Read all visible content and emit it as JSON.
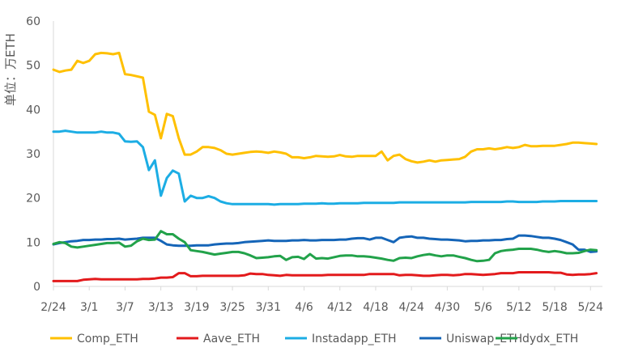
{
  "chart_data": {
    "type": "line",
    "title": "",
    "xlabel": "",
    "ylabel": "单位：万ETH",
    "ylim": [
      0,
      60
    ],
    "yticks": [
      0,
      10,
      20,
      30,
      40,
      50,
      60
    ],
    "xlim": [
      "2/24",
      "5/26"
    ],
    "xticks": [
      "2/24",
      "3/1",
      "3/7",
      "3/13",
      "3/19",
      "3/25",
      "3/31",
      "4/6",
      "4/12",
      "4/18",
      "4/24",
      "4/30",
      "5/6",
      "5/12",
      "5/18",
      "5/24"
    ],
    "grid": false,
    "legend_position": "bottom",
    "series": [
      {
        "name": "Comp_ETH",
        "color": "#FFC000",
        "x": [
          "2/24",
          "2/25",
          "2/26",
          "2/27",
          "2/28",
          "2/29",
          "3/1",
          "3/2",
          "3/3",
          "3/4",
          "3/5",
          "3/6",
          "3/7",
          "3/8",
          "3/9",
          "3/10",
          "3/11",
          "3/12",
          "3/13",
          "3/14",
          "3/15",
          "3/16",
          "3/17",
          "3/18",
          "3/19",
          "3/20",
          "3/21",
          "3/22",
          "3/23",
          "3/24",
          "3/25",
          "3/26",
          "3/27",
          "3/28",
          "3/29",
          "3/30",
          "3/31",
          "4/1",
          "4/2",
          "4/3",
          "4/4",
          "4/5",
          "4/6",
          "4/7",
          "4/8",
          "4/9",
          "4/10",
          "4/11",
          "4/12",
          "4/13",
          "4/14",
          "4/15",
          "4/16",
          "4/17",
          "4/18",
          "4/19",
          "4/20",
          "4/21",
          "4/22",
          "4/23",
          "4/24",
          "4/25",
          "4/26",
          "4/27",
          "4/28",
          "4/29",
          "4/30",
          "5/1",
          "5/2",
          "5/3",
          "5/4",
          "5/5",
          "5/6",
          "5/7",
          "5/8",
          "5/9",
          "5/10",
          "5/11",
          "5/12",
          "5/13",
          "5/14",
          "5/15",
          "5/16",
          "5/17",
          "5/18",
          "5/19",
          "5/20",
          "5/21",
          "5/22",
          "5/23",
          "5/24",
          "5/25"
        ],
        "values": [
          49,
          48.5,
          48.8,
          49,
          51,
          50.5,
          51,
          52.5,
          52.8,
          52.7,
          52.5,
          52.8,
          48,
          47.8,
          47.5,
          47.2,
          39.5,
          38.8,
          33.5,
          39,
          38.5,
          33.5,
          29.8,
          29.8,
          30.5,
          31.5,
          31.5,
          31.3,
          30.8,
          30,
          29.8,
          30,
          30.2,
          30.4,
          30.5,
          30.4,
          30.2,
          30.5,
          30.3,
          30,
          29.2,
          29.2,
          29,
          29.2,
          29.5,
          29.4,
          29.3,
          29.4,
          29.7,
          29.4,
          29.3,
          29.5,
          29.5,
          29.5,
          29.5,
          30.5,
          28.5,
          29.5,
          29.8,
          28.8,
          28.3,
          28,
          28.2,
          28.5,
          28.2,
          28.5,
          28.6,
          28.7,
          28.8,
          29.3,
          30.5,
          31,
          31,
          31.2,
          31,
          31.2,
          31.5,
          31.3,
          31.5,
          32,
          31.7,
          31.7,
          31.8,
          31.8,
          31.8,
          32,
          32.2,
          32.5,
          32.5,
          32.4,
          32.3,
          32.2
        ]
      },
      {
        "name": "Aave_ETH",
        "color": "#E31A1C",
        "x": [
          "2/24",
          "2/25",
          "2/26",
          "2/27",
          "2/28",
          "2/29",
          "3/1",
          "3/2",
          "3/3",
          "3/4",
          "3/5",
          "3/6",
          "3/7",
          "3/8",
          "3/9",
          "3/10",
          "3/11",
          "3/12",
          "3/13",
          "3/14",
          "3/15",
          "3/16",
          "3/17",
          "3/18",
          "3/19",
          "3/20",
          "3/21",
          "3/22",
          "3/23",
          "3/24",
          "3/25",
          "3/26",
          "3/27",
          "3/28",
          "3/29",
          "3/30",
          "3/31",
          "4/1",
          "4/2",
          "4/3",
          "4/4",
          "4/5",
          "4/6",
          "4/7",
          "4/8",
          "4/9",
          "4/10",
          "4/11",
          "4/12",
          "4/13",
          "4/14",
          "4/15",
          "4/16",
          "4/17",
          "4/18",
          "4/19",
          "4/20",
          "4/21",
          "4/22",
          "4/23",
          "4/24",
          "4/25",
          "4/26",
          "4/27",
          "4/28",
          "4/29",
          "4/30",
          "5/1",
          "5/2",
          "5/3",
          "5/4",
          "5/5",
          "5/6",
          "5/7",
          "5/8",
          "5/9",
          "5/10",
          "5/11",
          "5/12",
          "5/13",
          "5/14",
          "5/15",
          "5/16",
          "5/17",
          "5/18",
          "5/19",
          "5/20",
          "5/21",
          "5/22",
          "5/23",
          "5/24",
          "5/25"
        ],
        "values": [
          1.2,
          1.2,
          1.2,
          1.2,
          1.2,
          1.5,
          1.6,
          1.7,
          1.6,
          1.6,
          1.6,
          1.6,
          1.6,
          1.6,
          1.6,
          1.7,
          1.7,
          1.8,
          2,
          2,
          2.1,
          3,
          3,
          2.3,
          2.3,
          2.4,
          2.4,
          2.4,
          2.4,
          2.4,
          2.4,
          2.4,
          2.5,
          2.9,
          2.8,
          2.8,
          2.6,
          2.5,
          2.4,
          2.6,
          2.5,
          2.5,
          2.5,
          2.5,
          2.5,
          2.5,
          2.6,
          2.6,
          2.6,
          2.6,
          2.6,
          2.6,
          2.6,
          2.8,
          2.8,
          2.8,
          2.8,
          2.8,
          2.5,
          2.6,
          2.6,
          2.5,
          2.4,
          2.4,
          2.5,
          2.6,
          2.6,
          2.5,
          2.6,
          2.8,
          2.8,
          2.7,
          2.6,
          2.7,
          2.8,
          3,
          3,
          3,
          3.2,
          3.2,
          3.2,
          3.2,
          3.2,
          3.2,
          3.1,
          3.1,
          2.7,
          2.6,
          2.7,
          2.7,
          2.8,
          3
        ]
      },
      {
        "name": "Instadapp_ETH",
        "color": "#1CADE4",
        "x": [
          "2/24",
          "2/25",
          "2/26",
          "2/27",
          "2/28",
          "2/29",
          "3/1",
          "3/2",
          "3/3",
          "3/4",
          "3/5",
          "3/6",
          "3/7",
          "3/8",
          "3/9",
          "3/10",
          "3/11",
          "3/12",
          "3/13",
          "3/14",
          "3/15",
          "3/16",
          "3/17",
          "3/18",
          "3/19",
          "3/20",
          "3/21",
          "3/22",
          "3/23",
          "3/24",
          "3/25",
          "3/26",
          "3/27",
          "3/28",
          "3/29",
          "3/30",
          "3/31",
          "4/1",
          "4/2",
          "4/3",
          "4/4",
          "4/5",
          "4/6",
          "4/7",
          "4/8",
          "4/9",
          "4/10",
          "4/11",
          "4/12",
          "4/13",
          "4/14",
          "4/15",
          "4/16",
          "4/17",
          "4/18",
          "4/19",
          "4/20",
          "4/21",
          "4/22",
          "4/23",
          "4/24",
          "4/25",
          "4/26",
          "4/27",
          "4/28",
          "4/29",
          "4/30",
          "5/1",
          "5/2",
          "5/3",
          "5/4",
          "5/5",
          "5/6",
          "5/7",
          "5/8",
          "5/9",
          "5/10",
          "5/11",
          "5/12",
          "5/13",
          "5/14",
          "5/15",
          "5/16",
          "5/17",
          "5/18",
          "5/19",
          "5/20",
          "5/21",
          "5/22",
          "5/23",
          "5/24",
          "5/25"
        ],
        "values": [
          35,
          35,
          35.2,
          35,
          34.8,
          34.8,
          34.8,
          34.8,
          35,
          34.8,
          34.8,
          34.5,
          32.8,
          32.7,
          32.8,
          31.5,
          26.3,
          28.5,
          20.5,
          24.5,
          26.2,
          25.5,
          19.2,
          20.5,
          20,
          20,
          20.4,
          20,
          19.2,
          18.8,
          18.6,
          18.6,
          18.6,
          18.6,
          18.6,
          18.6,
          18.6,
          18.5,
          18.6,
          18.6,
          18.6,
          18.6,
          18.7,
          18.7,
          18.7,
          18.8,
          18.7,
          18.7,
          18.8,
          18.8,
          18.8,
          18.8,
          18.9,
          18.9,
          18.9,
          18.9,
          18.9,
          18.9,
          19,
          19,
          19,
          19,
          19,
          19,
          19,
          19,
          19,
          19,
          19,
          19,
          19.1,
          19.1,
          19.1,
          19.1,
          19.1,
          19.1,
          19.2,
          19.2,
          19.1,
          19.1,
          19.1,
          19.1,
          19.2,
          19.2,
          19.2,
          19.3,
          19.3,
          19.3,
          19.3,
          19.3,
          19.3,
          19.3
        ]
      },
      {
        "name": "Uniswap_ETH",
        "color": "#1565B8",
        "x": [
          "2/24",
          "2/25",
          "2/26",
          "2/27",
          "2/28",
          "2/29",
          "3/1",
          "3/2",
          "3/3",
          "3/4",
          "3/5",
          "3/6",
          "3/7",
          "3/8",
          "3/9",
          "3/10",
          "3/11",
          "3/12",
          "3/13",
          "3/14",
          "3/15",
          "3/16",
          "3/17",
          "3/18",
          "3/19",
          "3/20",
          "3/21",
          "3/22",
          "3/23",
          "3/24",
          "3/25",
          "3/26",
          "3/27",
          "3/28",
          "3/29",
          "3/30",
          "3/31",
          "4/1",
          "4/2",
          "4/3",
          "4/4",
          "4/5",
          "4/6",
          "4/7",
          "4/8",
          "4/9",
          "4/10",
          "4/11",
          "4/12",
          "4/13",
          "4/14",
          "4/15",
          "4/16",
          "4/17",
          "4/18",
          "4/19",
          "4/20",
          "4/21",
          "4/22",
          "4/23",
          "4/24",
          "4/25",
          "4/26",
          "4/27",
          "4/28",
          "4/29",
          "4/30",
          "5/1",
          "5/2",
          "5/3",
          "5/4",
          "5/5",
          "5/6",
          "5/7",
          "5/8",
          "5/9",
          "5/10",
          "5/11",
          "5/12",
          "5/13",
          "5/14",
          "5/15",
          "5/16",
          "5/17",
          "5/18",
          "5/19",
          "5/20",
          "5/21",
          "5/22",
          "5/23",
          "5/24",
          "5/25"
        ],
        "values": [
          9.5,
          9.8,
          10,
          10.2,
          10.3,
          10.5,
          10.5,
          10.6,
          10.6,
          10.7,
          10.7,
          10.8,
          10.6,
          10.7,
          10.8,
          11,
          11,
          11,
          10.3,
          9.5,
          9.3,
          9.2,
          9.2,
          9.2,
          9.3,
          9.3,
          9.3,
          9.5,
          9.6,
          9.7,
          9.7,
          9.8,
          10,
          10.1,
          10.2,
          10.3,
          10.4,
          10.3,
          10.3,
          10.3,
          10.4,
          10.4,
          10.5,
          10.4,
          10.4,
          10.5,
          10.5,
          10.5,
          10.6,
          10.6,
          10.8,
          10.9,
          10.9,
          10.6,
          11,
          11,
          10.5,
          10,
          11,
          11.2,
          11.3,
          11,
          11,
          10.8,
          10.7,
          10.6,
          10.6,
          10.5,
          10.4,
          10.2,
          10.3,
          10.3,
          10.4,
          10.4,
          10.5,
          10.5,
          10.7,
          10.8,
          11.5,
          11.5,
          11.4,
          11.2,
          11,
          11,
          10.8,
          10.5,
          10,
          9.5,
          8.3,
          8.3,
          7.8,
          7.9
        ]
      },
      {
        "name": "dydx_ETH",
        "color": "#22A24A",
        "x": [
          "2/24",
          "2/25",
          "2/26",
          "2/27",
          "2/28",
          "2/29",
          "3/1",
          "3/2",
          "3/3",
          "3/4",
          "3/5",
          "3/6",
          "3/7",
          "3/8",
          "3/9",
          "3/10",
          "3/11",
          "3/12",
          "3/13",
          "3/14",
          "3/15",
          "3/16",
          "3/17",
          "3/18",
          "3/19",
          "3/20",
          "3/21",
          "3/22",
          "3/23",
          "3/24",
          "3/25",
          "3/26",
          "3/27",
          "3/28",
          "3/29",
          "3/30",
          "3/31",
          "4/1",
          "4/2",
          "4/3",
          "4/4",
          "4/5",
          "4/6",
          "4/7",
          "4/8",
          "4/9",
          "4/10",
          "4/11",
          "4/12",
          "4/13",
          "4/14",
          "4/15",
          "4/16",
          "4/17",
          "4/18",
          "4/19",
          "4/20",
          "4/21",
          "4/22",
          "4/23",
          "4/24",
          "4/25",
          "4/26",
          "4/27",
          "4/28",
          "4/29",
          "4/30",
          "5/1",
          "5/2",
          "5/3",
          "5/4",
          "5/5",
          "5/6",
          "5/7",
          "5/8",
          "5/9",
          "5/10",
          "5/11",
          "5/12",
          "5/13",
          "5/14",
          "5/15",
          "5/16",
          "5/17",
          "5/18",
          "5/19",
          "5/20",
          "5/21",
          "5/22",
          "5/23",
          "5/24",
          "5/25"
        ],
        "values": [
          9.6,
          10,
          9.8,
          9,
          8.8,
          9,
          9.2,
          9.4,
          9.6,
          9.8,
          9.8,
          9.9,
          9,
          9.2,
          10.2,
          10.8,
          10.5,
          10.6,
          12.5,
          11.8,
          11.8,
          10.8,
          10,
          8.2,
          8,
          7.8,
          7.5,
          7.2,
          7.4,
          7.6,
          7.8,
          7.8,
          7.5,
          7,
          6.4,
          6.5,
          6.6,
          6.8,
          6.9,
          6,
          6.6,
          6.7,
          6.2,
          7.3,
          6.3,
          6.4,
          6.3,
          6.6,
          6.9,
          7,
          7,
          6.8,
          6.8,
          6.7,
          6.5,
          6.3,
          6,
          5.8,
          6.4,
          6.5,
          6.4,
          6.8,
          7.1,
          7.3,
          7,
          6.8,
          7,
          7,
          6.7,
          6.4,
          6,
          5.7,
          5.8,
          6,
          7.5,
          8,
          8.2,
          8.3,
          8.5,
          8.5,
          8.5,
          8.3,
          8,
          7.8,
          8,
          7.8,
          7.5,
          7.5,
          7.6,
          8,
          8.3,
          8.2
        ]
      }
    ]
  }
}
